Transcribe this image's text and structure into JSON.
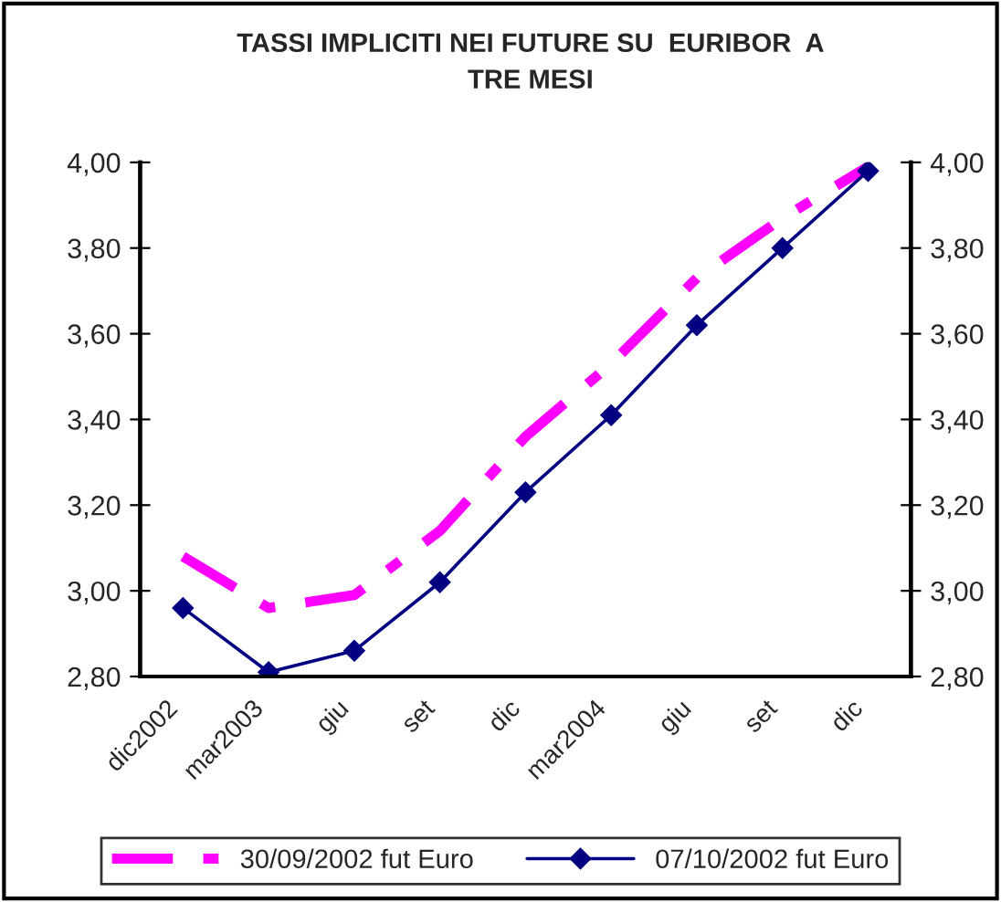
{
  "chart_data": {
    "type": "line",
    "title": "TASSI IMPLICITI NEI FUTURE SU  EURIBOR  A\nTRE MESI",
    "categories": [
      "dic2002",
      "mar2003",
      "giu",
      "set",
      "dic",
      "mar2004",
      "giu",
      "set",
      "dic"
    ],
    "series": [
      {
        "name": "30/09/2002 fut Euro",
        "color": "#ff00ff",
        "line_style": "dashed",
        "marker": "none",
        "values": [
          3.08,
          2.96,
          2.99,
          3.14,
          3.36,
          3.53,
          3.73,
          3.87,
          3.99
        ]
      },
      {
        "name": "07/10/2002 fut Euro",
        "color": "#000080",
        "line_style": "solid",
        "marker": "diamond",
        "values": [
          2.96,
          2.81,
          2.86,
          3.02,
          3.23,
          3.41,
          3.62,
          3.8,
          3.98
        ]
      }
    ],
    "ylim": [
      2.8,
      4.0
    ],
    "yticks": [
      {
        "value": 2.8,
        "label": "2,80"
      },
      {
        "value": 3.0,
        "label": "3,00"
      },
      {
        "value": 3.2,
        "label": "3,20"
      },
      {
        "value": 3.4,
        "label": "3,40"
      },
      {
        "value": 3.6,
        "label": "3,60"
      },
      {
        "value": 3.8,
        "label": "3,80"
      },
      {
        "value": 4.0,
        "label": "4,00"
      }
    ],
    "y2lim": [
      2.8,
      4.0
    ],
    "y2ticks": [
      {
        "value": 2.8,
        "label": "2,80"
      },
      {
        "value": 3.0,
        "label": "3,00"
      },
      {
        "value": 3.2,
        "label": "3,20"
      },
      {
        "value": 3.4,
        "label": "3,40"
      },
      {
        "value": 3.6,
        "label": "3,60"
      },
      {
        "value": 3.8,
        "label": "3,80"
      },
      {
        "value": 4.0,
        "label": "4,00"
      }
    ],
    "grid": false,
    "legend": "bottom"
  }
}
